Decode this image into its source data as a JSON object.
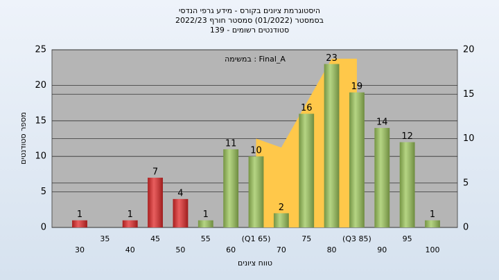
{
  "chart_data": {
    "type": "bar",
    "title": [
      "היסטוגרמת ציונים בקורס - מידע גרפי הנדסי",
      "בסמסטר  (01/2022)  סמסטר חורף  2022/23",
      "סטודנטים רשומים - 139"
    ],
    "annotation": "במשימה : Final_A",
    "y_label": "מספר סטודנטים",
    "x_label": "טווח ציונים",
    "categories": [
      "30",
      "35",
      "40",
      "45",
      "50",
      "55",
      "60",
      "(Q1 65)",
      "70",
      "75",
      "80",
      "(Q3 85)",
      "90",
      "95",
      "100"
    ],
    "series": [
      {
        "values": [
          1,
          0,
          1,
          7,
          4,
          1,
          11,
          10,
          2,
          16,
          23,
          19,
          14,
          12,
          1
        ],
        "colors": [
          "#e02828",
          "#e02828",
          "#e02828",
          "#e02828",
          "#e02828",
          "#9cc65a",
          "#9cc65a",
          "#9cc65a",
          "#9cc65a",
          "#9cc65a",
          "#9cc65a",
          "#9cc65a",
          "#9cc65a",
          "#9cc65a",
          "#9cc65a"
        ]
      },
      {
        "type": "area",
        "axis": "y2",
        "color": "#ffc84a",
        "values": [
          null,
          null,
          null,
          null,
          null,
          null,
          null,
          10,
          9,
          14,
          19,
          19,
          null,
          null,
          null
        ]
      }
    ],
    "ylim": [
      0,
      25
    ],
    "yticks": [
      0,
      5,
      10,
      15,
      20,
      25
    ],
    "y2lim": [
      0,
      20
    ],
    "y2ticks": [
      0,
      5,
      10,
      15,
      20
    ],
    "grid": true
  }
}
